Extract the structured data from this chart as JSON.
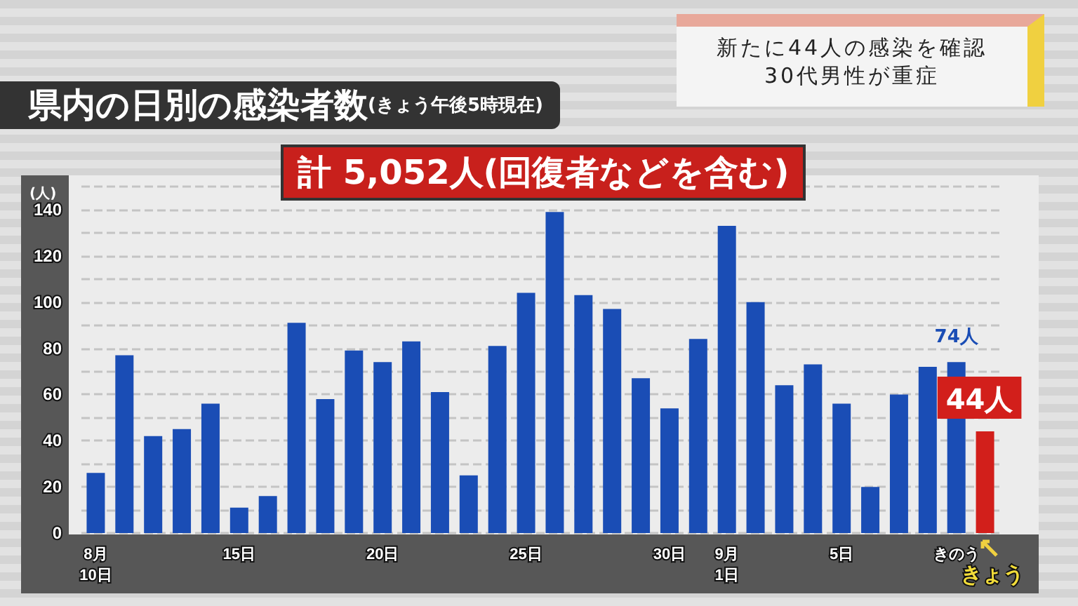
{
  "chart_data": {
    "type": "bar",
    "title": "県内の日別の感染者数",
    "subtitle": "(きょう午後5時現在)",
    "ylabel": "(人)",
    "annotations": [
      "計 5,052人(回復者などを含む)",
      "新たに44人の感染を確認\n30代男性が重症"
    ],
    "categories": [
      "8月\n10日",
      null,
      null,
      null,
      null,
      "15日",
      null,
      null,
      null,
      null,
      "20日",
      null,
      null,
      null,
      null,
      "25日",
      null,
      null,
      null,
      null,
      "30日",
      null,
      "9月\n1日",
      null,
      null,
      null,
      "5日",
      null,
      null,
      null,
      "きのう",
      "きょう"
    ],
    "values": [
      26,
      77,
      42,
      45,
      56,
      11,
      16,
      91,
      58,
      79,
      74,
      83,
      61,
      25,
      81,
      104,
      139,
      103,
      97,
      67,
      54,
      84,
      133,
      100,
      64,
      73,
      56,
      20,
      60,
      72,
      74,
      44
    ],
    "colors": [
      "#1a4db5",
      "#1a4db5",
      "#1a4db5",
      "#1a4db5",
      "#1a4db5",
      "#1a4db5",
      "#1a4db5",
      "#1a4db5",
      "#1a4db5",
      "#1a4db5",
      "#1a4db5",
      "#1a4db5",
      "#1a4db5",
      "#1a4db5",
      "#1a4db5",
      "#1a4db5",
      "#1a4db5",
      "#1a4db5",
      "#1a4db5",
      "#1a4db5",
      "#1a4db5",
      "#1a4db5",
      "#1a4db5",
      "#1a4db5",
      "#1a4db5",
      "#1a4db5",
      "#1a4db5",
      "#1a4db5",
      "#1a4db5",
      "#1a4db5",
      "#1a4db5",
      "#d21f1b"
    ],
    "value_labels": [
      null,
      null,
      null,
      null,
      null,
      null,
      null,
      null,
      null,
      null,
      null,
      null,
      null,
      null,
      null,
      null,
      null,
      null,
      null,
      null,
      null,
      null,
      null,
      null,
      null,
      null,
      null,
      null,
      null,
      null,
      "74人",
      "44人"
    ],
    "ylim": [
      0,
      150
    ],
    "yticks": [
      0,
      {
        "value": 10,
        "label": null
      },
      20,
      {
        "value": 30,
        "label": null
      },
      40,
      {
        "value": 50,
        "label": null
      },
      60,
      {
        "value": 70,
        "label": null
      },
      80,
      {
        "value": 90,
        "label": null
      },
      100,
      {
        "value": 110,
        "label": null
      },
      120,
      {
        "value": 130,
        "label": null
      },
      140,
      {
        "value": 150,
        "label": null
      }
    ],
    "grid": "y"
  }
}
